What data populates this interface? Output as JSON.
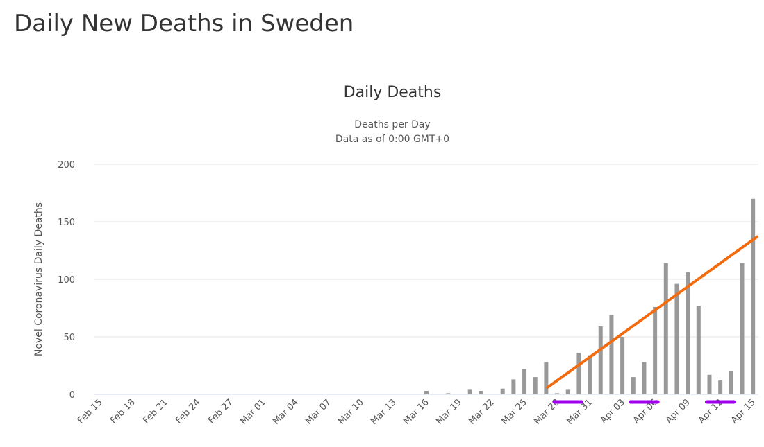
{
  "page": {
    "title": "Daily New Deaths in Sweden"
  },
  "chart_data": {
    "type": "bar",
    "title": "Daily Deaths",
    "subtitle": [
      "Deaths per Day",
      "Data as of 0:00 GMT+0"
    ],
    "xlabel": "",
    "ylabel": "Novel Coronavirus Daily Deaths",
    "ylim": [
      0,
      200
    ],
    "yticks": [
      0,
      50,
      100,
      150,
      200
    ],
    "grid": true,
    "bar_color": "#999999",
    "trend_color": "#f26b0f",
    "marker_color": "#9b00e8",
    "categories": [
      "Feb 15",
      "Feb 16",
      "Feb 17",
      "Feb 18",
      "Feb 19",
      "Feb 20",
      "Feb 21",
      "Feb 22",
      "Feb 23",
      "Feb 24",
      "Feb 25",
      "Feb 26",
      "Feb 27",
      "Feb 28",
      "Feb 29",
      "Mar 01",
      "Mar 02",
      "Mar 03",
      "Mar 04",
      "Mar 05",
      "Mar 06",
      "Mar 07",
      "Mar 08",
      "Mar 09",
      "Mar 10",
      "Mar 11",
      "Mar 12",
      "Mar 13",
      "Mar 14",
      "Mar 15",
      "Mar 16",
      "Mar 17",
      "Mar 18",
      "Mar 19",
      "Mar 20",
      "Mar 21",
      "Mar 22",
      "Mar 23",
      "Mar 24",
      "Mar 25",
      "Mar 26",
      "Mar 27",
      "Mar 28",
      "Mar 29",
      "Mar 30",
      "Mar 31",
      "Apr 01",
      "Apr 02",
      "Apr 03",
      "Apr 04",
      "Apr 05",
      "Apr 06",
      "Apr 07",
      "Apr 08",
      "Apr 09",
      "Apr 10",
      "Apr 11",
      "Apr 12",
      "Apr 13",
      "Apr 14",
      "Apr 15"
    ],
    "tick_labels": [
      "Feb 15",
      "Feb 18",
      "Feb 21",
      "Feb 24",
      "Feb 27",
      "Mar 01",
      "Mar 04",
      "Mar 07",
      "Mar 10",
      "Mar 13",
      "Mar 16",
      "Mar 19",
      "Mar 22",
      "Mar 25",
      "Mar 28",
      "Mar 31",
      "Apr 03",
      "Apr 06",
      "Apr 09",
      "Apr 12",
      "Apr 15"
    ],
    "values": [
      0,
      0,
      0,
      0,
      0,
      0,
      0,
      0,
      0,
      0,
      0,
      0,
      0,
      0,
      0,
      0,
      0,
      0,
      0,
      0,
      0,
      0,
      0,
      0,
      0,
      0,
      0,
      0,
      0,
      0,
      3,
      0,
      1,
      0,
      4,
      3,
      0,
      5,
      13,
      22,
      15,
      28,
      1,
      4,
      36,
      34,
      59,
      69,
      50,
      15,
      28,
      76,
      114,
      96,
      106,
      77,
      17,
      12,
      20,
      114,
      170
    ],
    "trend_line": {
      "from": {
        "x": "Mar 27",
        "y": 6
      },
      "to": {
        "x": "Apr 15",
        "y": 137
      }
    },
    "annotations": [
      {
        "type": "underline",
        "from": "Mar 28",
        "to": "Mar 30"
      },
      {
        "type": "underline",
        "from": "Apr 04",
        "to": "Apr 06"
      },
      {
        "type": "underline",
        "from": "Apr 11",
        "to": "Apr 13"
      }
    ]
  }
}
